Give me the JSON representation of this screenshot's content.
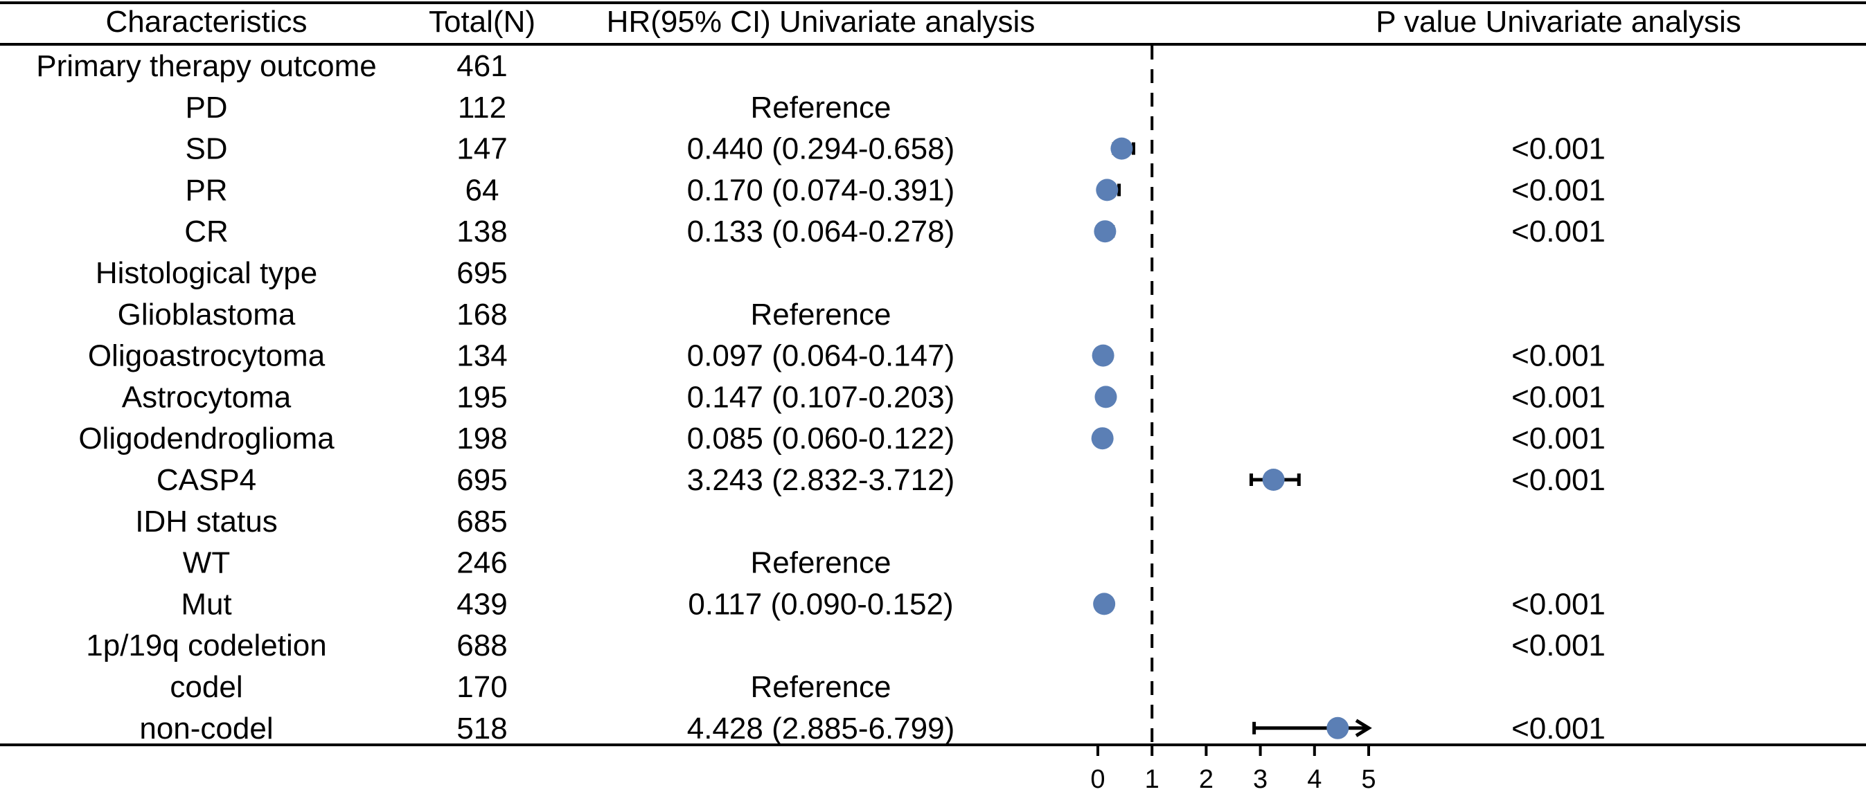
{
  "chart_data": {
    "type": "forest",
    "columns": {
      "characteristics": "Characteristics",
      "total": "Total(N)",
      "hr": "HR(95% CI) Univariate analysis",
      "p": "P value Univariate analysis"
    },
    "reference_line": 1,
    "x_ticks": [
      0,
      1,
      2,
      3,
      4,
      5
    ],
    "xlim": [
      0,
      5
    ],
    "marker_color": "#5b7fb5",
    "rows": [
      {
        "label": "Primary therapy outcome",
        "n": "461",
        "hr_text": "",
        "p": "",
        "hr": null,
        "lo": null,
        "hi": null
      },
      {
        "label": "PD",
        "n": "112",
        "hr_text": "Reference",
        "p": "",
        "hr": null,
        "lo": null,
        "hi": null
      },
      {
        "label": "SD",
        "n": "147",
        "hr_text": "0.440 (0.294-0.658)",
        "p": "<0.001",
        "hr": 0.44,
        "lo": 0.294,
        "hi": 0.658
      },
      {
        "label": "PR",
        "n": "64",
        "hr_text": "0.170 (0.074-0.391)",
        "p": "<0.001",
        "hr": 0.17,
        "lo": 0.074,
        "hi": 0.391
      },
      {
        "label": "CR",
        "n": "138",
        "hr_text": "0.133 (0.064-0.278)",
        "p": "<0.001",
        "hr": 0.133,
        "lo": 0.064,
        "hi": 0.278
      },
      {
        "label": "Histological type",
        "n": "695",
        "hr_text": "",
        "p": "",
        "hr": null,
        "lo": null,
        "hi": null
      },
      {
        "label": "Glioblastoma",
        "n": "168",
        "hr_text": "Reference",
        "p": "",
        "hr": null,
        "lo": null,
        "hi": null
      },
      {
        "label": "Oligoastrocytoma",
        "n": "134",
        "hr_text": "0.097 (0.064-0.147)",
        "p": "<0.001",
        "hr": 0.097,
        "lo": 0.064,
        "hi": 0.147
      },
      {
        "label": "Astrocytoma",
        "n": "195",
        "hr_text": "0.147 (0.107-0.203)",
        "p": "<0.001",
        "hr": 0.147,
        "lo": 0.107,
        "hi": 0.203
      },
      {
        "label": "Oligodendroglioma",
        "n": "198",
        "hr_text": "0.085 (0.060-0.122)",
        "p": "<0.001",
        "hr": 0.085,
        "lo": 0.06,
        "hi": 0.122
      },
      {
        "label": "CASP4",
        "n": "695",
        "hr_text": "3.243 (2.832-3.712)",
        "p": "<0.001",
        "hr": 3.243,
        "lo": 2.832,
        "hi": 3.712
      },
      {
        "label": "IDH status",
        "n": "685",
        "hr_text": "",
        "p": "",
        "hr": null,
        "lo": null,
        "hi": null
      },
      {
        "label": "WT",
        "n": "246",
        "hr_text": "Reference",
        "p": "",
        "hr": null,
        "lo": null,
        "hi": null
      },
      {
        "label": "Mut",
        "n": "439",
        "hr_text": "0.117 (0.090-0.152)",
        "p": "<0.001",
        "hr": 0.117,
        "lo": 0.09,
        "hi": 0.152
      },
      {
        "label": "1p/19q codeletion",
        "n": "688",
        "hr_text": "",
        "p": "<0.001",
        "hr": null,
        "lo": null,
        "hi": null
      },
      {
        "label": "codel",
        "n": "170",
        "hr_text": "Reference",
        "p": "",
        "hr": null,
        "lo": null,
        "hi": null
      },
      {
        "label": "non-codel",
        "n": "518",
        "hr_text": "4.428 (2.885-6.799)",
        "p": "<0.001",
        "hr": 4.428,
        "lo": 2.885,
        "hi": 6.799
      }
    ]
  }
}
